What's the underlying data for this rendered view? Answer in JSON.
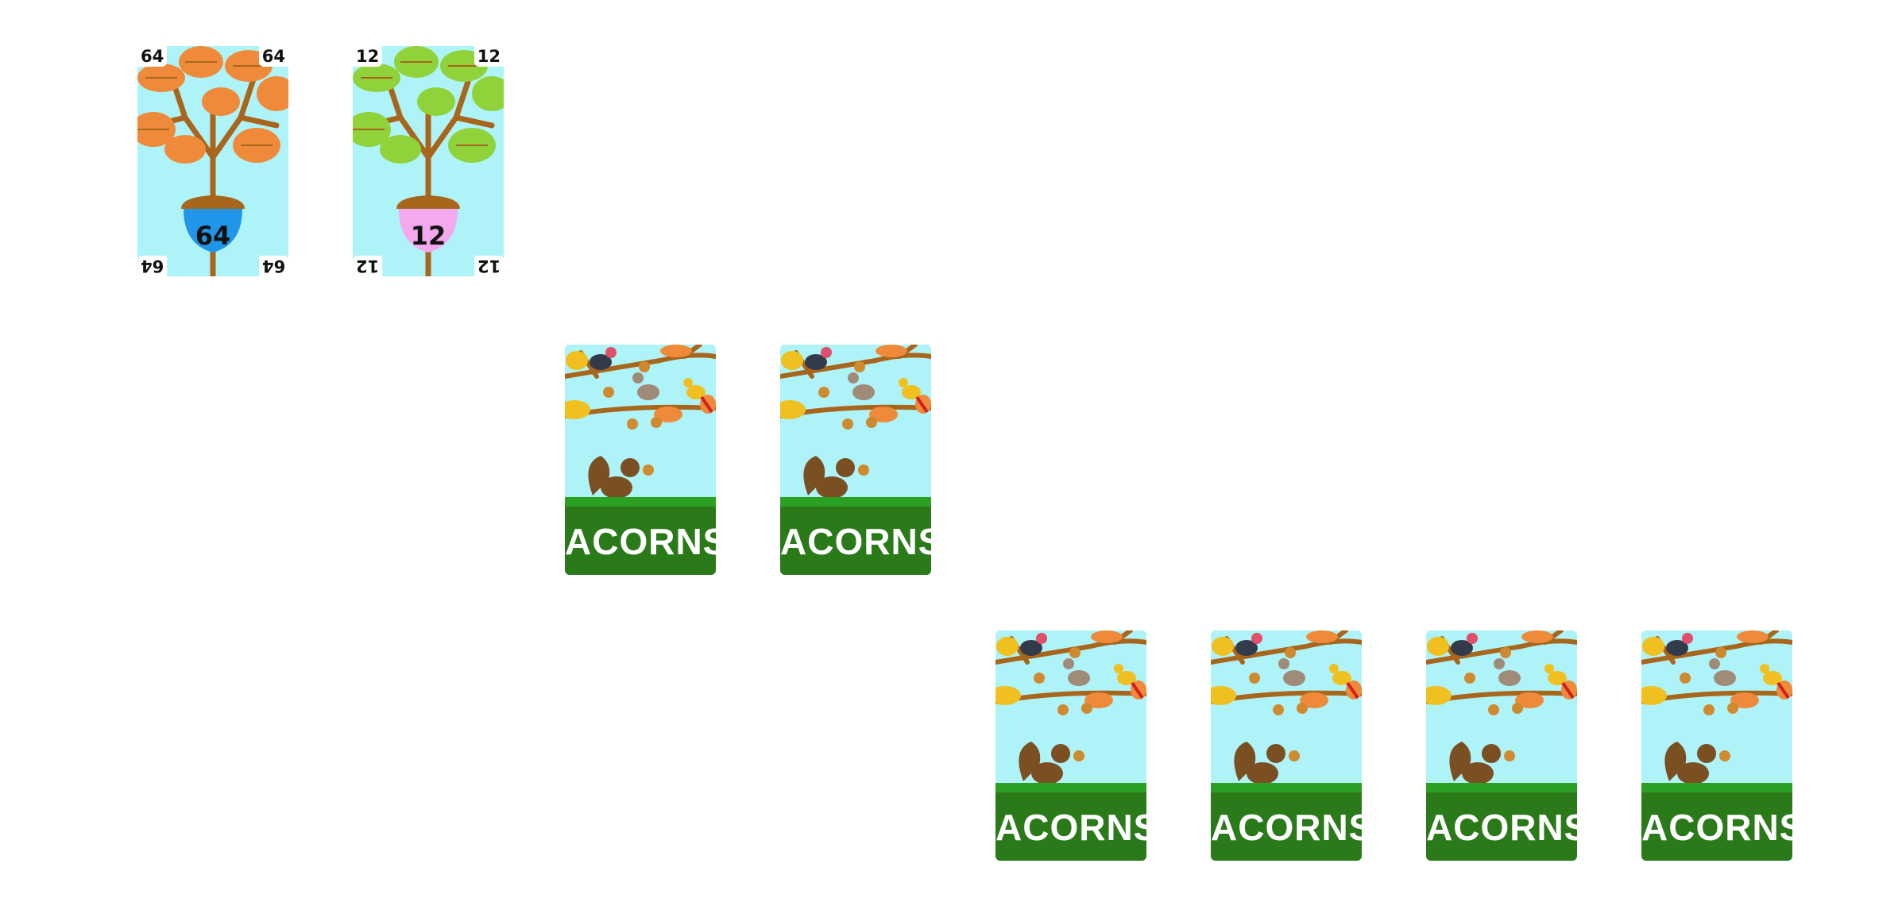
{
  "face_up_cards": [
    {
      "value": "64",
      "leaf_color": "#ef8a3a",
      "acorn_color": "#2196e8"
    },
    {
      "value": "12",
      "leaf_color": "#8fd23a",
      "acorn_color": "#f4a8ee"
    }
  ],
  "card_back_label": "ACORNS",
  "rows": [
    {
      "face_down_count": 2
    },
    {
      "face_down_count": 4
    }
  ],
  "colors": {
    "sky": "#aef3f7",
    "grass": "#2b7a1a",
    "branch": "#a8661c",
    "acorn_cap": "#a8661c"
  }
}
